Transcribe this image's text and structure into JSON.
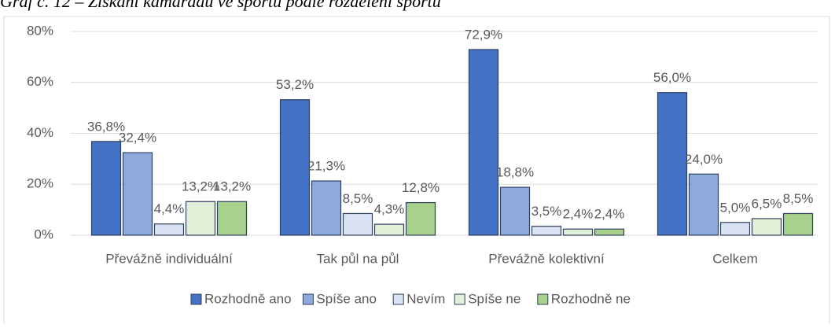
{
  "chart_data": {
    "type": "bar",
    "title": "Graf č. 12 – Získání kamarádů ve sportu podle rozdělení sportu",
    "categories": [
      "Převážně individuální",
      "Tak půl na půl",
      "Převážně kolektivní",
      "Celkem"
    ],
    "series": [
      {
        "name": "Rozhodně ano",
        "color": "#4472c4",
        "values": [
          36.8,
          53.2,
          72.9,
          56.0
        ],
        "value_labels": [
          "36,8%",
          "53,2%",
          "72,9%",
          "56,0%"
        ]
      },
      {
        "name": "Spíše ano",
        "color": "#8faadc",
        "values": [
          32.4,
          21.3,
          18.8,
          24.0
        ],
        "value_labels": [
          "32,4%",
          "21,3%",
          "18,8%",
          "24,0%"
        ]
      },
      {
        "name": "Nevím",
        "color": "#dae3f3",
        "values": [
          4.4,
          8.5,
          3.5,
          5.0
        ],
        "value_labels": [
          "4,4%",
          "8,5%",
          "3,5%",
          "5,0%"
        ]
      },
      {
        "name": "Spíše ne",
        "color": "#e2f0d9",
        "values": [
          13.2,
          4.3,
          2.4,
          6.5
        ],
        "value_labels": [
          "13,2%",
          "4,3%",
          "2,4%",
          "6,5%"
        ]
      },
      {
        "name": "Rozhodně ne",
        "color": "#a9d18e",
        "values": [
          13.2,
          12.8,
          2.4,
          8.5
        ],
        "value_labels": [
          "13,2%",
          "12,8%",
          "2,4%",
          "8,5%"
        ]
      }
    ],
    "ylim": [
      0,
      80
    ],
    "yticks": [
      {
        "value": 0,
        "label": "0%"
      },
      {
        "value": 20,
        "label": "20%"
      },
      {
        "value": 40,
        "label": "40%"
      },
      {
        "value": 60,
        "label": "60%"
      },
      {
        "value": 80,
        "label": "80%"
      }
    ],
    "grid": true,
    "legend": "bottom"
  }
}
